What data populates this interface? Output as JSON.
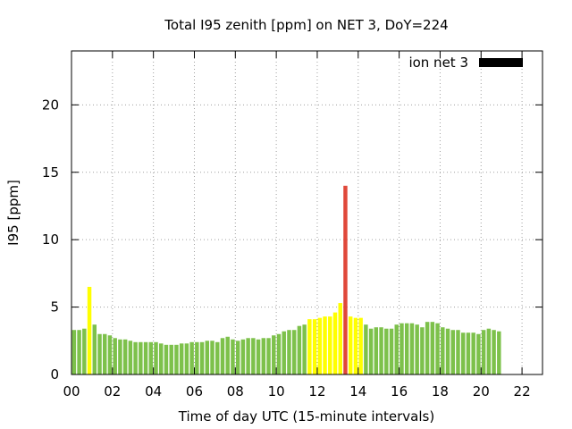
{
  "chart_data": {
    "type": "bar",
    "title": "Total I95 zenith [ppm] on NET 3, DoY=224",
    "xlabel": "Time of day UTC (15-minute intervals)",
    "ylabel": "I95 [ppm]",
    "xlim": [
      0,
      23
    ],
    "ylim": [
      0,
      24
    ],
    "x_tick_values": [
      0,
      2,
      4,
      6,
      8,
      10,
      12,
      14,
      16,
      18,
      20,
      22
    ],
    "x_tick_labels": [
      "00",
      "02",
      "04",
      "06",
      "08",
      "10",
      "12",
      "14",
      "16",
      "18",
      "20",
      "22"
    ],
    "y_ticks": [
      0,
      5,
      10,
      15,
      20
    ],
    "grid": true,
    "legend_position": "top-right",
    "legend": {
      "label": "ion net 3",
      "color": "#000000"
    },
    "bar_interval_hours": 0.25,
    "colors": {
      "green": "#7dc14b",
      "yellow": "#ffff00",
      "red": "#e0483a"
    },
    "values": [
      3.3,
      3.3,
      3.4,
      6.5,
      3.7,
      3.0,
      3.0,
      2.9,
      2.7,
      2.6,
      2.6,
      2.5,
      2.4,
      2.4,
      2.4,
      2.4,
      2.4,
      2.3,
      2.2,
      2.2,
      2.2,
      2.3,
      2.3,
      2.4,
      2.4,
      2.4,
      2.5,
      2.5,
      2.4,
      2.7,
      2.8,
      2.6,
      2.5,
      2.6,
      2.7,
      2.7,
      2.6,
      2.7,
      2.7,
      2.9,
      3.0,
      3.2,
      3.3,
      3.3,
      3.6,
      3.7,
      4.1,
      4.1,
      4.2,
      4.3,
      4.3,
      4.6,
      5.3,
      14.0,
      4.3,
      4.2,
      4.2,
      3.7,
      3.4,
      3.5,
      3.5,
      3.4,
      3.4,
      3.7,
      3.8,
      3.8,
      3.8,
      3.7,
      3.5,
      3.9,
      3.9,
      3.8,
      3.5,
      3.4,
      3.3,
      3.3,
      3.1,
      3.1,
      3.1,
      3.0,
      3.3,
      3.4,
      3.3,
      3.2
    ],
    "bar_colors": [
      "green",
      "green",
      "green",
      "yellow",
      "green",
      "green",
      "green",
      "green",
      "green",
      "green",
      "green",
      "green",
      "green",
      "green",
      "green",
      "green",
      "green",
      "green",
      "green",
      "green",
      "green",
      "green",
      "green",
      "green",
      "green",
      "green",
      "green",
      "green",
      "green",
      "green",
      "green",
      "green",
      "green",
      "green",
      "green",
      "green",
      "green",
      "green",
      "green",
      "green",
      "green",
      "green",
      "green",
      "green",
      "green",
      "green",
      "yellow",
      "yellow",
      "yellow",
      "yellow",
      "yellow",
      "yellow",
      "yellow",
      "red",
      "yellow",
      "yellow",
      "yellow",
      "green",
      "green",
      "green",
      "green",
      "green",
      "green",
      "green",
      "green",
      "green",
      "green",
      "green",
      "green",
      "green",
      "green",
      "green",
      "green",
      "green",
      "green",
      "green",
      "green",
      "green",
      "green",
      "green",
      "green",
      "green",
      "green",
      "green"
    ]
  }
}
